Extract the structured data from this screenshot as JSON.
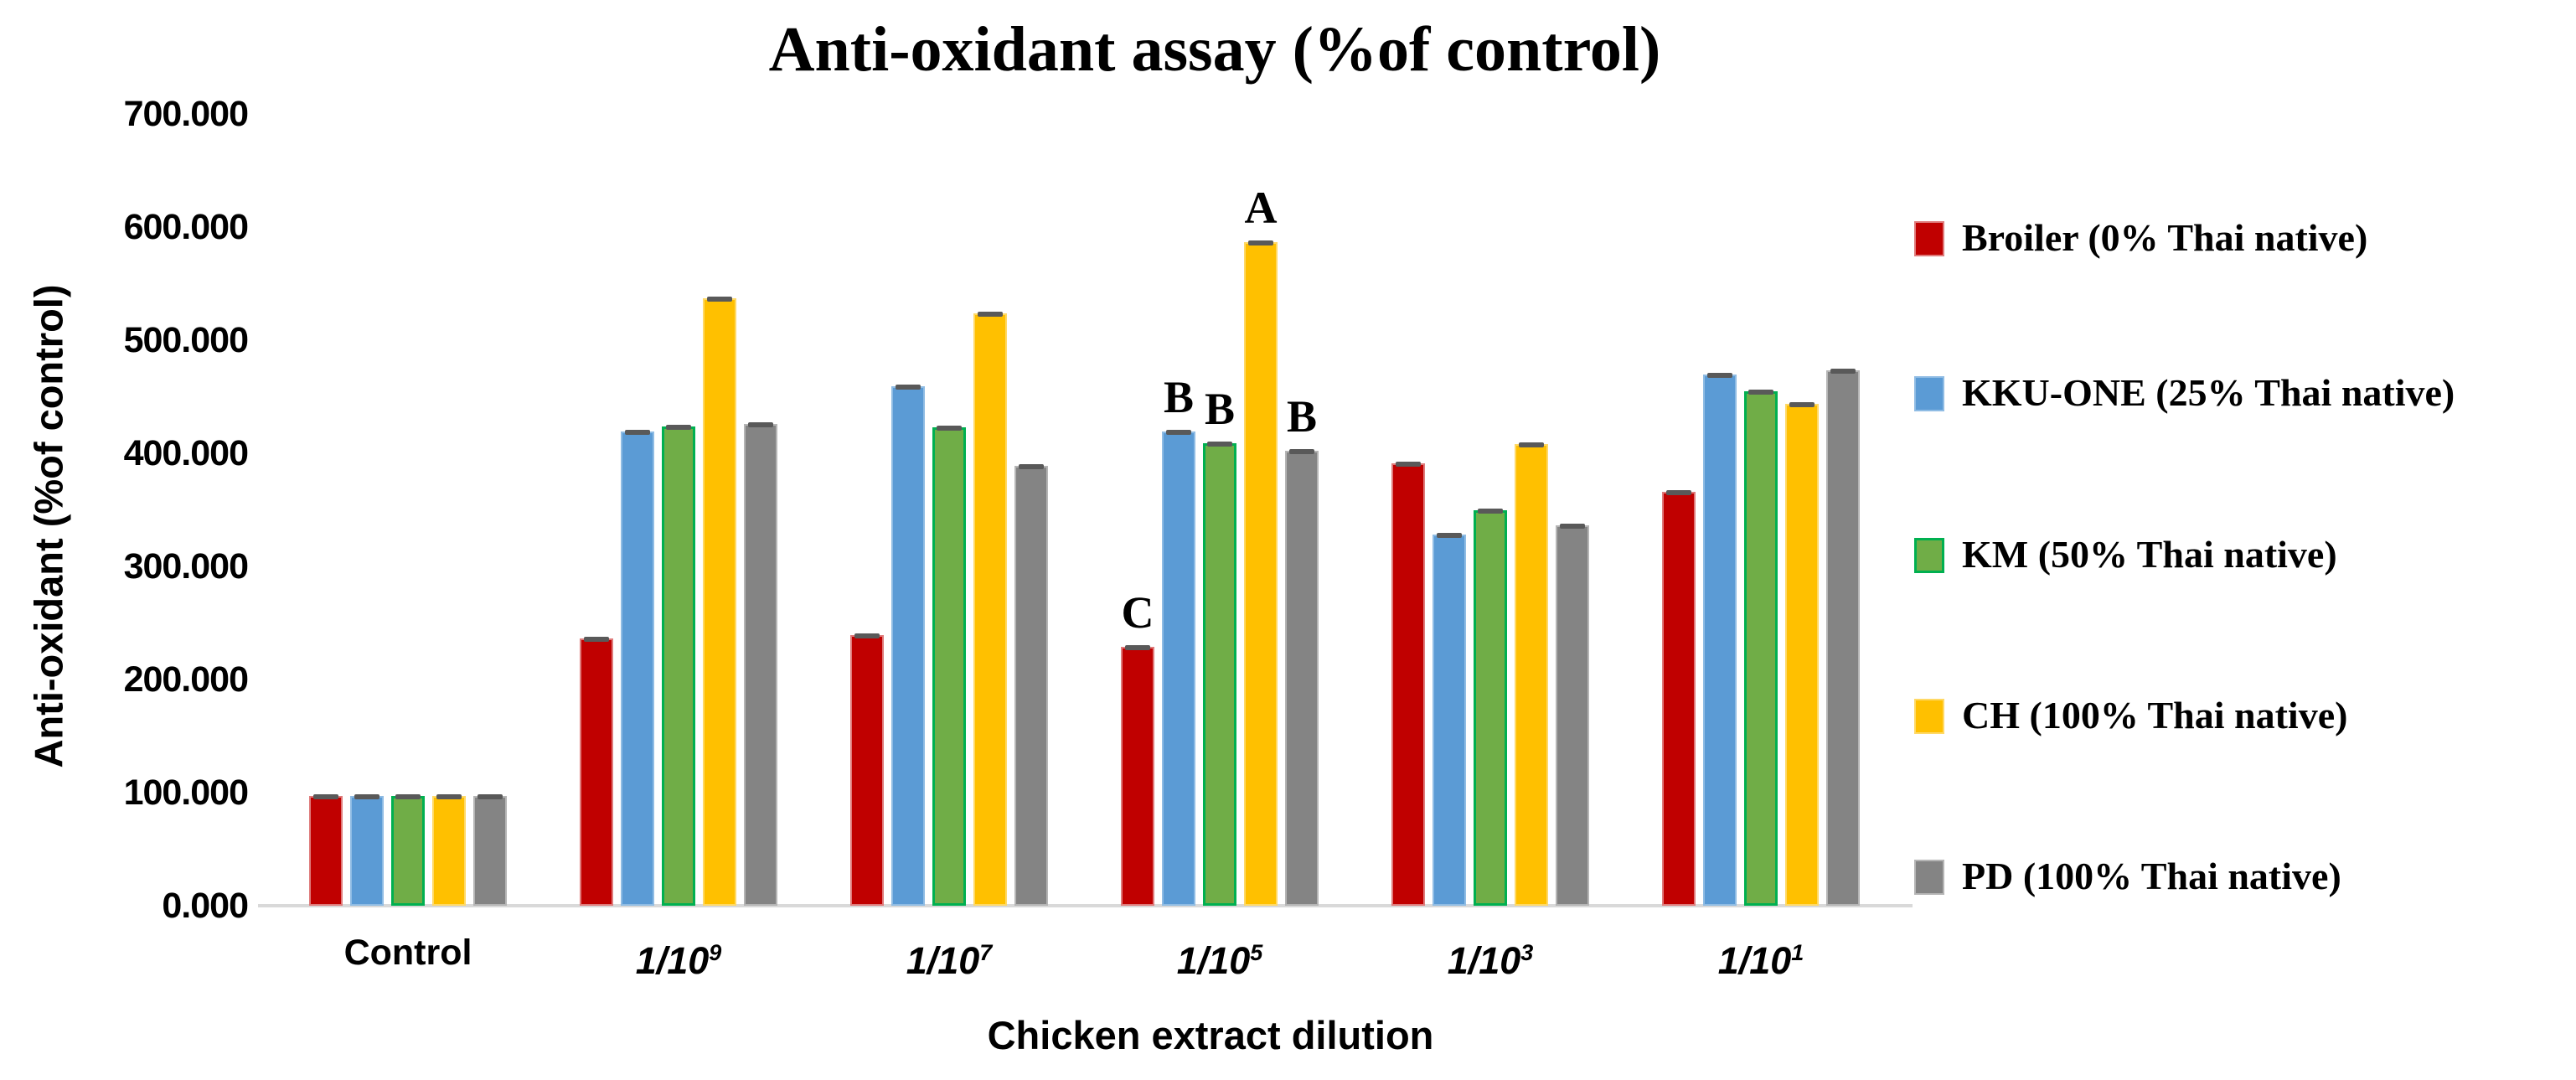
{
  "chart_data": {
    "type": "bar",
    "title": "Anti-oxidant assay (%of control)",
    "xlabel": "Chicken extract dilution",
    "ylabel": "Anti-oxidant (%of control)",
    "ylim": [
      0,
      700
    ],
    "y_tick_step": 100,
    "grid": false,
    "legend_position": "right",
    "y_tick_labels": [
      "0.000",
      "100.000",
      "200.000",
      "300.000",
      "400.000",
      "500.000",
      "600.000",
      "700.000"
    ],
    "categories": [
      {
        "text": "Control",
        "sup": "",
        "italic": false
      },
      {
        "text": "1/10",
        "sup": "9",
        "italic": true
      },
      {
        "text": "1/10",
        "sup": "7",
        "italic": true
      },
      {
        "text": "1/10",
        "sup": "5",
        "italic": true
      },
      {
        "text": "1/10",
        "sup": "3",
        "italic": true
      },
      {
        "text": "1/10",
        "sup": "1",
        "italic": true
      }
    ],
    "series": [
      {
        "name": "Broiler (0% Thai native)",
        "fill": "#C00000",
        "border": "#DF7B7B",
        "border_width": 2,
        "values": [
          97,
          236,
          239,
          229,
          391,
          366
        ]
      },
      {
        "name": "KKU-ONE (25% Thai native)",
        "fill": "#5B9BD5",
        "border": "#8FBCE4",
        "border_width": 2,
        "values": [
          97,
          419,
          459,
          419,
          328,
          470
        ]
      },
      {
        "name": "KM (50% Thai native)",
        "fill": "#70AD47",
        "border": "#00B050",
        "border_width": 3,
        "values": [
          97,
          424,
          423,
          409,
          350,
          455
        ]
      },
      {
        "name": "CH (100% Thai native)",
        "fill": "#FFC000",
        "border": "#FFD966",
        "border_width": 2,
        "values": [
          97,
          537,
          524,
          587,
          408,
          444
        ]
      },
      {
        "name": "PD (100% Thai native)",
        "fill": "#848484",
        "border": "#B5B5B5",
        "border_width": 2,
        "values": [
          97,
          426,
          389,
          402,
          336,
          473
        ]
      }
    ],
    "error_bars": true,
    "significance_letters": [
      {
        "category_index": 3,
        "series_index": 0,
        "letter": "C"
      },
      {
        "category_index": 3,
        "series_index": 1,
        "letter": "B"
      },
      {
        "category_index": 3,
        "series_index": 2,
        "letter": "B"
      },
      {
        "category_index": 3,
        "series_index": 3,
        "letter": "A"
      },
      {
        "category_index": 3,
        "series_index": 4,
        "letter": "B"
      }
    ],
    "colors": {
      "error_cap": "#595959",
      "axis_line": "#D9D9D9",
      "text": "#000000",
      "background": "#FFFFFF"
    }
  }
}
